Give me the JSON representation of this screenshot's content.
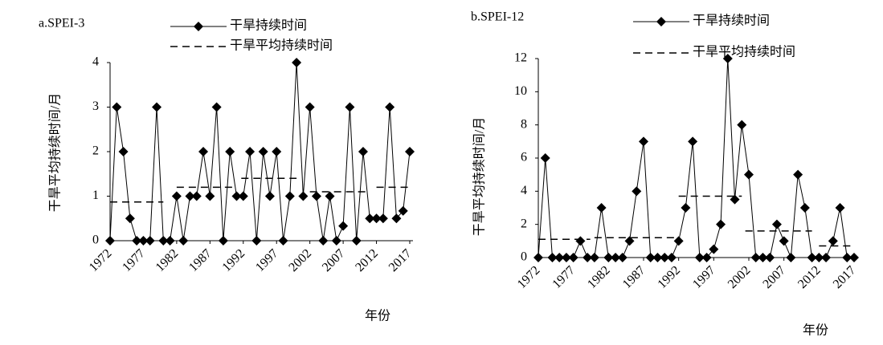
{
  "chart_data": [
    {
      "type": "line",
      "title": "a.SPEI-3",
      "x_label": "年份",
      "y_label": "干旱平均持续时间/月",
      "x": [
        1972,
        1973,
        1974,
        1975,
        1976,
        1977,
        1978,
        1979,
        1980,
        1981,
        1982,
        1983,
        1984,
        1985,
        1986,
        1987,
        1988,
        1989,
        1990,
        1991,
        1992,
        1993,
        1994,
        1995,
        1996,
        1997,
        1998,
        1999,
        2000,
        2001,
        2002,
        2003,
        2004,
        2005,
        2006,
        2007,
        2008,
        2009,
        2010,
        2011,
        2012,
        2013,
        2014,
        2015,
        2016,
        2017
      ],
      "series": [
        {
          "name": "干旱持续时间",
          "color": "#000000",
          "values": [
            0,
            3,
            2,
            0.5,
            0,
            0,
            0,
            3,
            0,
            0,
            1,
            0,
            1,
            1,
            2,
            1,
            3,
            0,
            2,
            1,
            1,
            2,
            0,
            2,
            1,
            2,
            0,
            1,
            4,
            1,
            3,
            1,
            0,
            1,
            0,
            0.33,
            3,
            0,
            2,
            0.5,
            0.5,
            0.5,
            3,
            0.5,
            0.67,
            2
          ]
        }
      ],
      "mean_name": "干旱平均持续时间",
      "mean_segments": [
        {
          "x": [
            1972,
            1980
          ],
          "value": 0.87
        },
        {
          "x": [
            1982,
            1990.5
          ],
          "value": 1.2
        },
        {
          "x": [
            1991.7,
            2000
          ],
          "value": 1.4
        },
        {
          "x": [
            2002,
            2010.4
          ],
          "value": 1.1
        },
        {
          "x": [
            2012,
            2017
          ],
          "value": 1.2
        }
      ],
      "xlim": [
        1972,
        2017
      ],
      "xticks": [
        1972,
        1977,
        1982,
        1987,
        1992,
        1997,
        2002,
        2007,
        2012,
        2017
      ],
      "ylim": [
        0,
        4
      ],
      "yticks": [
        0,
        1,
        2,
        3,
        4
      ]
    },
    {
      "type": "line",
      "title": "b.SPEI-12",
      "x_label": "年份",
      "y_label": "干旱平均持续时间/月",
      "x": [
        1972,
        1973,
        1974,
        1975,
        1976,
        1977,
        1978,
        1979,
        1980,
        1981,
        1982,
        1983,
        1984,
        1985,
        1986,
        1987,
        1988,
        1989,
        1990,
        1991,
        1992,
        1993,
        1994,
        1995,
        1996,
        1997,
        1998,
        1999,
        2000,
        2001,
        2002,
        2003,
        2004,
        2005,
        2006,
        2007,
        2008,
        2009,
        2010,
        2011,
        2012,
        2013,
        2014,
        2015,
        2016,
        2017
      ],
      "series": [
        {
          "name": "干旱持续时间",
          "color": "#000000",
          "values": [
            0,
            6,
            0,
            0,
            0,
            0,
            1,
            0,
            0,
            3,
            0,
            0,
            0,
            1,
            4,
            7,
            0,
            0,
            0,
            0,
            1,
            3,
            7,
            0,
            0,
            0.5,
            2,
            12,
            3.5,
            8,
            5,
            0,
            0,
            0,
            2,
            1,
            0,
            5,
            3,
            0,
            0,
            0,
            1,
            3,
            0,
            0
          ]
        }
      ],
      "mean_name": "干旱平均持续时间",
      "mean_segments": [
        {
          "x": [
            1972,
            1979.4
          ],
          "value": 1.1
        },
        {
          "x": [
            1980,
            1991.5
          ],
          "value": 1.2
        },
        {
          "x": [
            1992,
            2001
          ],
          "value": 3.7
        },
        {
          "x": [
            2001.5,
            2011
          ],
          "value": 1.6
        },
        {
          "x": [
            2012,
            2017
          ],
          "value": 0.7
        }
      ],
      "xlim": [
        1972,
        2017
      ],
      "xticks": [
        1972,
        1977,
        1982,
        1987,
        1992,
        1997,
        2002,
        2007,
        2012,
        2017
      ],
      "ylim": [
        0,
        12
      ],
      "yticks": [
        0,
        2,
        4,
        6,
        8,
        10,
        12
      ]
    }
  ]
}
